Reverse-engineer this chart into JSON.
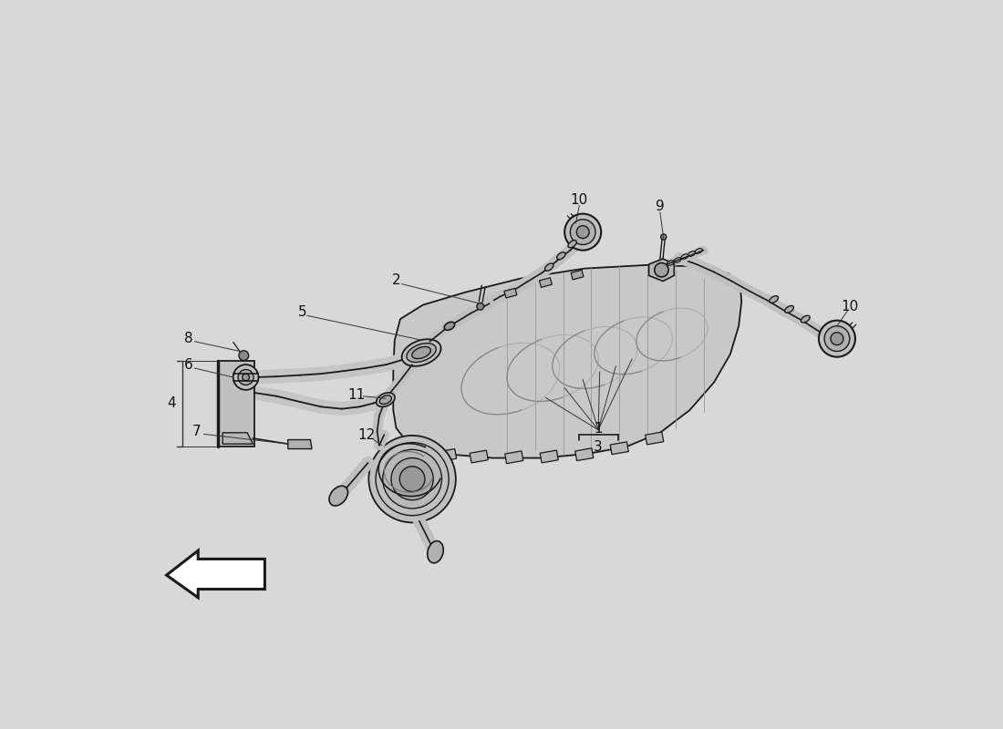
{
  "bg_color": "#d8d8d8",
  "line_color": "#1a1a1a",
  "label_fontsize": 11,
  "label_color": "#111111",
  "lw_main": 1.2,
  "lw_thin": 0.8,
  "lw_thick": 2.0
}
